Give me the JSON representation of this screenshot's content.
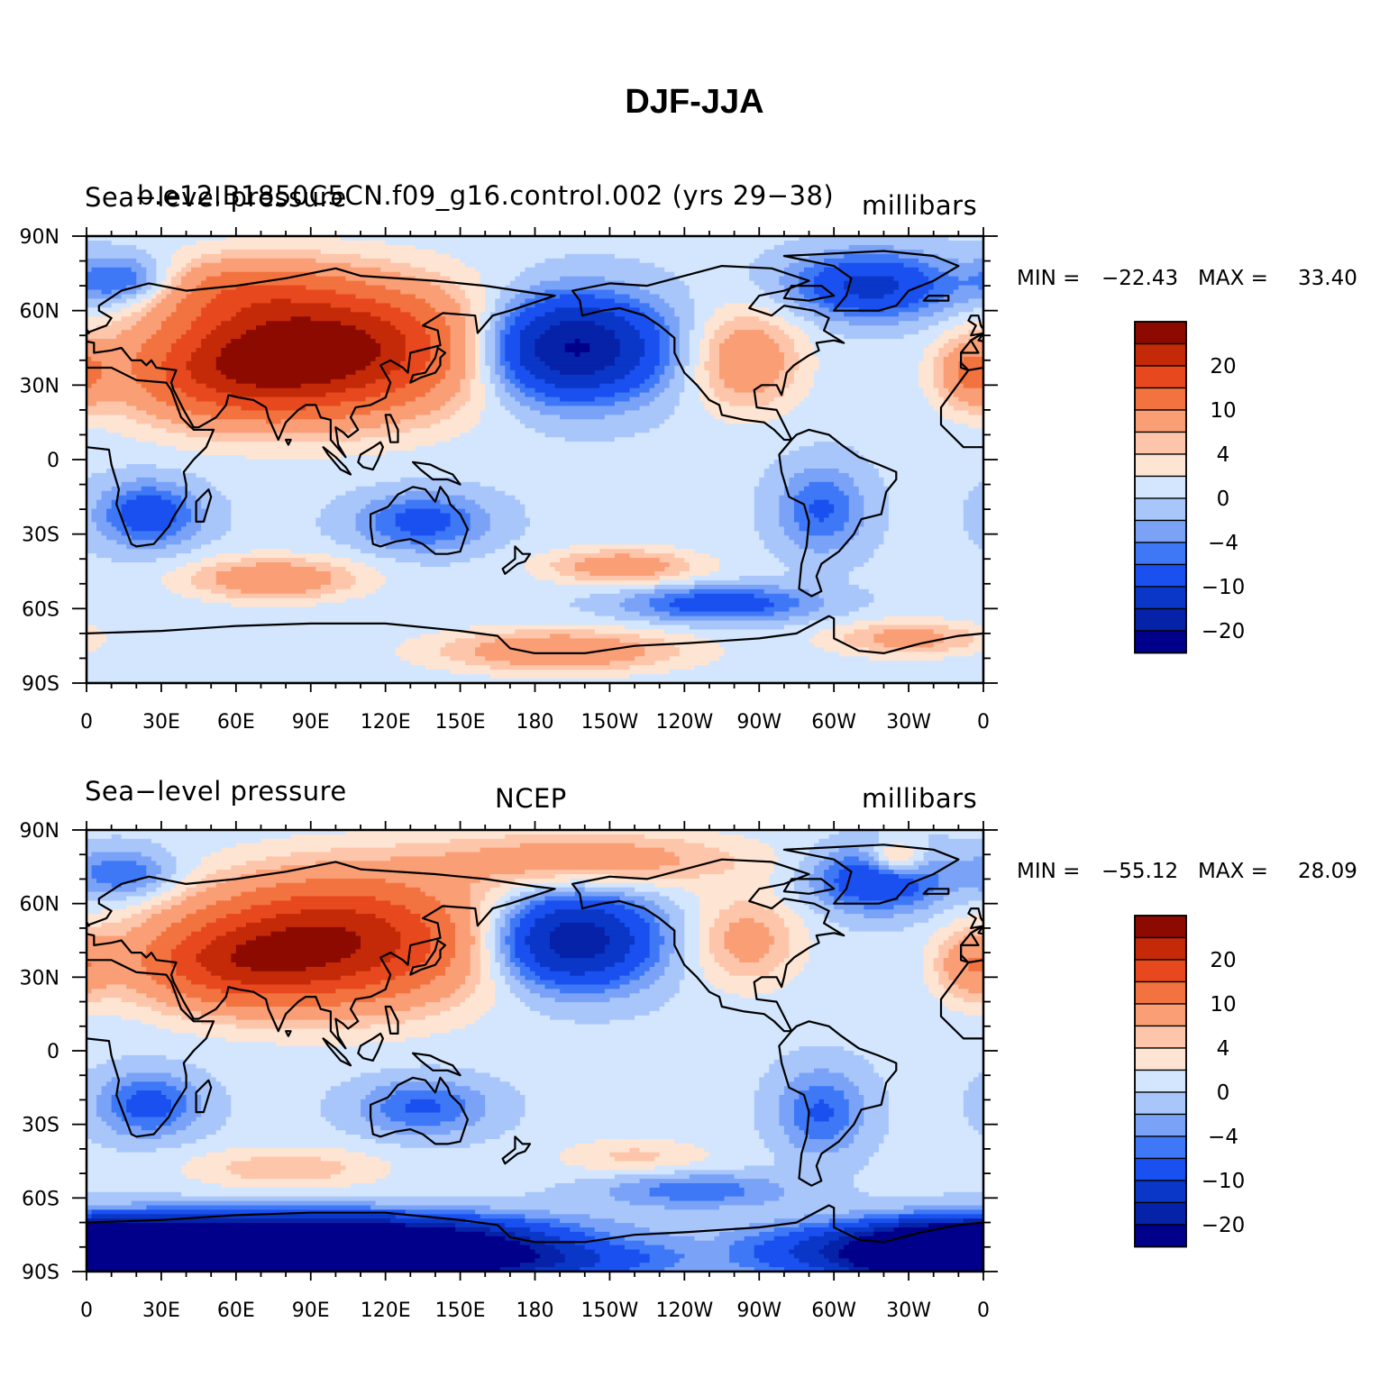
{
  "title": "DJF-JJA",
  "levels": [
    -20,
    -15,
    -10,
    -6,
    -4,
    -2,
    0,
    2,
    4,
    6,
    10,
    15,
    20,
    25
  ],
  "colors": [
    "#00008a",
    "#0522a8",
    "#0a37c8",
    "#1a50f0",
    "#3f78f7",
    "#7aa3f8",
    "#a9c6fb",
    "#d3e6fe",
    "#fee4d2",
    "#fdc5aa",
    "#fa9e76",
    "#f2733f",
    "#e8481e",
    "#c42a08",
    "#8c0a00"
  ],
  "x_ticks": [
    "0",
    "30E",
    "60E",
    "90E",
    "120E",
    "150E",
    "180",
    "150W",
    "120W",
    "90W",
    "60W",
    "30W",
    "0"
  ],
  "y_ticks": [
    "90N",
    "60N",
    "30N",
    "0",
    "30S",
    "60S",
    "90S"
  ],
  "colorbar_labels": [
    "20",
    "10",
    "4",
    "0",
    "−4",
    "−10",
    "−20"
  ],
  "panels": [
    {
      "left_title": "Sea−level pressure",
      "center_title": "b.e12.B1850C5CN.f09_g16.control.002 (yrs 29−38)",
      "right_title": "millibars",
      "min_label": "MIN =",
      "min_value": "−22.43",
      "max_label": "MAX =",
      "max_value": "33.40",
      "centers": [
        {
          "lon": 100,
          "lat": 45,
          "amp": 26,
          "sx": 38,
          "sy": 18
        },
        {
          "lon": 55,
          "lat": 35,
          "amp": 14,
          "sx": 30,
          "sy": 14
        },
        {
          "lon": 60,
          "lat": 68,
          "amp": 8,
          "sx": 25,
          "sy": 10
        },
        {
          "lon": 195,
          "lat": 45,
          "amp": -22,
          "sx": 24,
          "sy": 14
        },
        {
          "lon": 265,
          "lat": 40,
          "amp": 9,
          "sx": 15,
          "sy": 14
        },
        {
          "lon": 315,
          "lat": 70,
          "amp": -12,
          "sx": 22,
          "sy": 9
        },
        {
          "lon": 15,
          "lat": 72,
          "amp": -8,
          "sx": 14,
          "sy": 7
        },
        {
          "lon": 355,
          "lat": 35,
          "amp": 9,
          "sx": 10,
          "sy": 10
        },
        {
          "lon": 25,
          "lat": -22,
          "amp": -9,
          "sx": 14,
          "sy": 9
        },
        {
          "lon": 135,
          "lat": -25,
          "amp": -8,
          "sx": 18,
          "sy": 8
        },
        {
          "lon": 295,
          "lat": -20,
          "amp": -7,
          "sx": 12,
          "sy": 12
        },
        {
          "lon": 75,
          "lat": -48,
          "amp": 9,
          "sx": 24,
          "sy": 6
        },
        {
          "lon": 215,
          "lat": -43,
          "amp": 8,
          "sx": 22,
          "sy": 5
        },
        {
          "lon": 255,
          "lat": -58,
          "amp": -9,
          "sx": 26,
          "sy": 5
        },
        {
          "lon": 190,
          "lat": -77,
          "amp": 9,
          "sx": 35,
          "sy": 6
        },
        {
          "lon": 330,
          "lat": -72,
          "amp": 7,
          "sx": 22,
          "sy": 5
        }
      ]
    },
    {
      "left_title": "Sea−level pressure",
      "center_title": "NCEP",
      "right_title": "millibars",
      "min_label": "MIN =",
      "min_value": "−55.12",
      "max_label": "MAX =",
      "max_value": "28.09",
      "centers": [
        {
          "lon": 100,
          "lat": 45,
          "amp": 24,
          "sx": 40,
          "sy": 18
        },
        {
          "lon": 55,
          "lat": 35,
          "amp": 12,
          "sx": 28,
          "sy": 12
        },
        {
          "lon": 200,
          "lat": 78,
          "amp": 8,
          "sx": 45,
          "sy": 8
        },
        {
          "lon": 195,
          "lat": 45,
          "amp": -20,
          "sx": 22,
          "sy": 13
        },
        {
          "lon": 265,
          "lat": 45,
          "amp": 7,
          "sx": 15,
          "sy": 13
        },
        {
          "lon": 318,
          "lat": 70,
          "amp": -11,
          "sx": 18,
          "sy": 9
        },
        {
          "lon": 325,
          "lat": 78,
          "amp": 9,
          "sx": 8,
          "sy": 5
        },
        {
          "lon": 15,
          "lat": 72,
          "amp": -7,
          "sx": 14,
          "sy": 7
        },
        {
          "lon": 355,
          "lat": 35,
          "amp": 8,
          "sx": 10,
          "sy": 10
        },
        {
          "lon": 25,
          "lat": -22,
          "amp": -8,
          "sx": 14,
          "sy": 9
        },
        {
          "lon": 135,
          "lat": -23,
          "amp": -7,
          "sx": 18,
          "sy": 8
        },
        {
          "lon": 295,
          "lat": -25,
          "amp": -7,
          "sx": 12,
          "sy": 12
        },
        {
          "lon": 80,
          "lat": -48,
          "amp": 5,
          "sx": 28,
          "sy": 6
        },
        {
          "lon": 220,
          "lat": -43,
          "amp": 4,
          "sx": 22,
          "sy": 5
        },
        {
          "lon": 245,
          "lat": -57,
          "amp": -6,
          "sx": 26,
          "sy": 5
        },
        {
          "lon": 70,
          "lat": -82,
          "amp": -70,
          "sx": 75,
          "sy": 8
        },
        {
          "lon": 345,
          "lat": -82,
          "amp": -40,
          "sx": 20,
          "sy": 6
        },
        {
          "lon": 195,
          "lat": -78,
          "amp": 5,
          "sx": 30,
          "sy": 5
        }
      ]
    }
  ]
}
